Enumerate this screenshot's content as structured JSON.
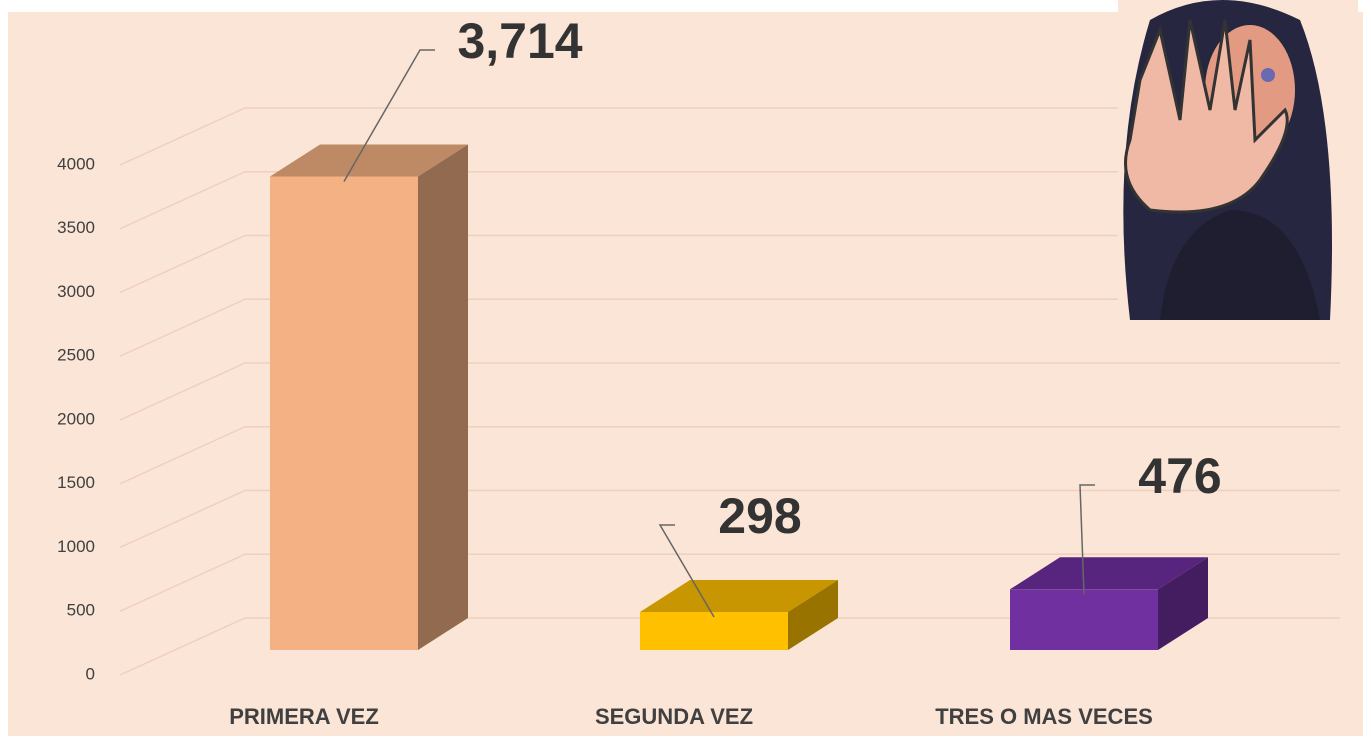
{
  "chart_data": {
    "type": "bar3d",
    "categories": [
      "PRIMERA VEZ",
      "SEGUNDA VEZ",
      "TRES O MAS VECES"
    ],
    "values": [
      3714,
      298,
      476
    ],
    "value_labels": [
      "3,714",
      "298",
      "476"
    ],
    "colors": [
      "#f4b183",
      "#ffc000",
      "#7030a0"
    ],
    "ylim": [
      0,
      4000
    ],
    "yticks": [
      0,
      500,
      1000,
      1500,
      2000,
      2500,
      3000,
      3500,
      4000
    ],
    "grid": true
  }
}
